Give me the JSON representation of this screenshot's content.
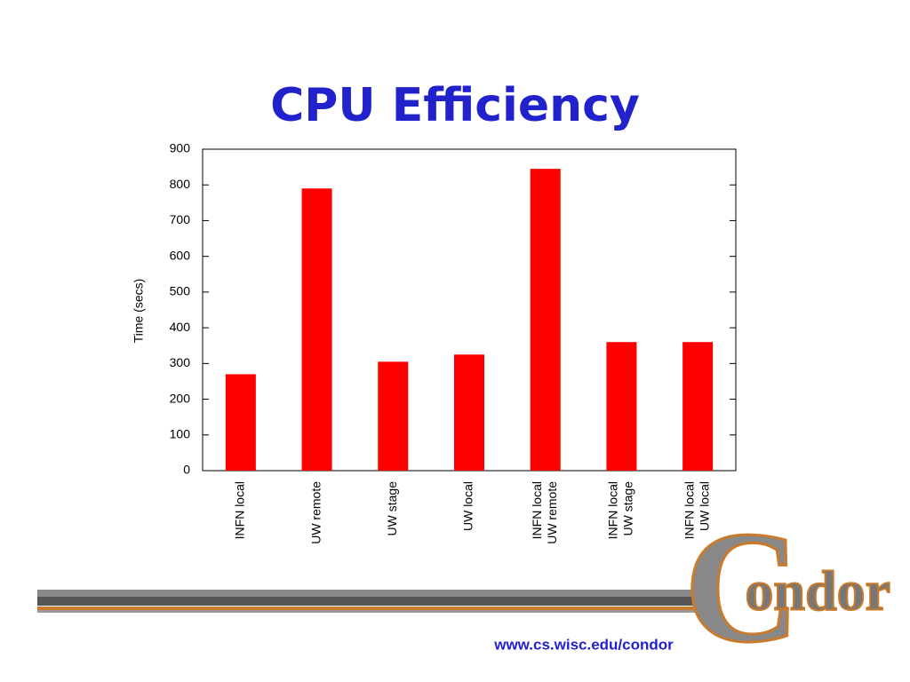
{
  "chart_data": {
    "type": "bar",
    "title": "CPU Efficiency",
    "y_label": "Time (secs)",
    "categories": [
      [
        "INFN local"
      ],
      [
        "UW remote"
      ],
      [
        "UW stage"
      ],
      [
        "UW local"
      ],
      [
        "INFN local",
        "UW remote"
      ],
      [
        "INFN local",
        "UW stage"
      ],
      [
        "INFN local",
        "UW local"
      ]
    ],
    "values": [
      270,
      790,
      305,
      325,
      845,
      360,
      360
    ],
    "color": "#ff0000",
    "ylim": [
      0,
      900
    ],
    "yticks": [
      0,
      100,
      200,
      300,
      400,
      500,
      600,
      700,
      800,
      900
    ],
    "grid": false
  },
  "footer": {
    "url": "www.cs.wisc.edu/condor",
    "logo": {
      "initial": "C",
      "rest": "ondor"
    }
  }
}
